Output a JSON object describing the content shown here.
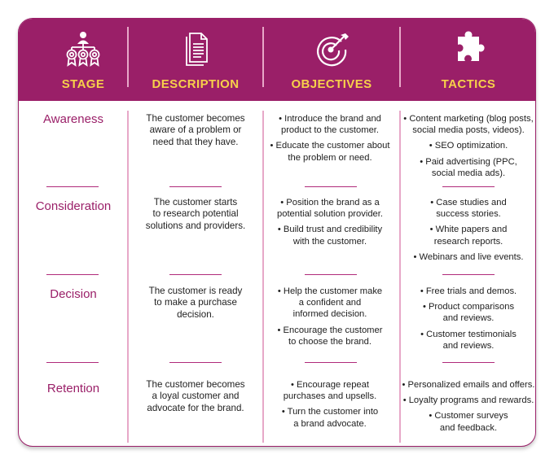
{
  "columns": [
    {
      "title": "STAGE",
      "icon": "team-hierarchy-icon"
    },
    {
      "title": "DESCRIPTION",
      "icon": "document-icon"
    },
    {
      "title": "OBJECTIVES",
      "icon": "target-icon"
    },
    {
      "title": "TACTICS",
      "icon": "puzzle-piece-icon"
    }
  ],
  "rows": [
    {
      "stage": "Awareness",
      "description": [
        "The customer becomes",
        "aware of a problem or",
        "need that they have."
      ],
      "objectives": [
        [
          "• Introduce the brand and",
          "product to the customer."
        ],
        [
          "• Educate the customer about",
          "the problem or need."
        ]
      ],
      "tactics": [
        [
          "• Content marketing (blog posts,",
          "social media posts, videos)."
        ],
        [
          "• SEO optimization."
        ],
        [
          "• Paid advertising (PPC,",
          "social media ads)."
        ]
      ]
    },
    {
      "stage": "Consideration",
      "description": [
        "The customer starts",
        "to research potential",
        "solutions and providers."
      ],
      "objectives": [
        [
          "• Position the brand as a",
          "potential solution provider."
        ],
        [
          "• Build trust and credibility",
          "with the customer."
        ]
      ],
      "tactics": [
        [
          "• Case studies and",
          "success stories."
        ],
        [
          "• White papers and",
          "research reports."
        ],
        [
          "• Webinars and live events."
        ]
      ]
    },
    {
      "stage": "Decision",
      "description": [
        "The customer is ready",
        "to make a purchase",
        "decision."
      ],
      "objectives": [
        [
          "• Help the customer make",
          "a confident and",
          "informed decision."
        ],
        [
          "• Encourage the customer",
          "to choose the brand."
        ]
      ],
      "tactics": [
        [
          "• Free trials and demos."
        ],
        [
          "• Product comparisons",
          "and reviews."
        ],
        [
          "• Customer testimonials",
          "and reviews."
        ]
      ]
    },
    {
      "stage": "Retention",
      "description": [
        "The customer becomes",
        "a loyal customer and",
        "advocate for the brand."
      ],
      "objectives": [
        [
          "• Encourage repeat",
          "purchases and upsells."
        ],
        [
          "• Turn the customer into",
          "a brand advocate."
        ]
      ],
      "tactics": [
        [
          "• Personalized emails and offers."
        ],
        [
          "• Loyalty programs and rewards."
        ],
        [
          "• Customer surveys",
          "and feedback."
        ]
      ]
    }
  ],
  "colors": {
    "header_bg": "#9a1f68",
    "header_text": "#f7d04a",
    "stage_text": "#9a1f68",
    "divider": "#e7a8c8"
  }
}
